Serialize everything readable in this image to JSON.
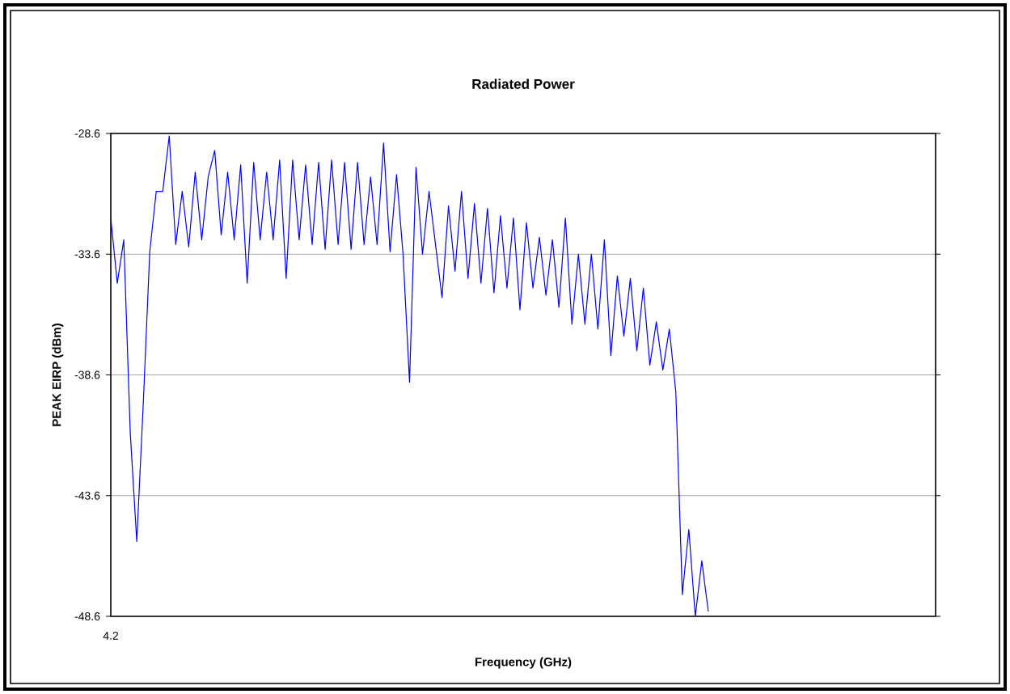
{
  "chart_data": {
    "type": "line",
    "title": "Radiated Power",
    "xlabel": "Frequency (GHz)",
    "ylabel": "PEAK EIRP (dBm)",
    "categories": [
      "4.2",
      null,
      null,
      null,
      null,
      null,
      null,
      null,
      null,
      null,
      null,
      null,
      null,
      null,
      null,
      null,
      null,
      null,
      null,
      null,
      null,
      null,
      null,
      null,
      null,
      null,
      null,
      null,
      null,
      null,
      null,
      null,
      null,
      null,
      null,
      null,
      null,
      null,
      null,
      null,
      null,
      null,
      null,
      null,
      null,
      null,
      null,
      null,
      null,
      null,
      null,
      null,
      null,
      null,
      null,
      null,
      null,
      null,
      null,
      null,
      null,
      null,
      null,
      null,
      null,
      null,
      null,
      null,
      null,
      null,
      null,
      null,
      null,
      null,
      null,
      null,
      null,
      null,
      null,
      null,
      null,
      null,
      null,
      null,
      null,
      null,
      null,
      null,
      null,
      null,
      null,
      null,
      null,
      null,
      null,
      null,
      null,
      null,
      null,
      null,
      null,
      null,
      null,
      null,
      null,
      null,
      null,
      null,
      null,
      null,
      null,
      null,
      null,
      null,
      null,
      null,
      null,
      null,
      null,
      null,
      null,
      null,
      null,
      null,
      null,
      null,
      null,
      null
    ],
    "series": [
      {
        "color": "#0000ff",
        "values": [
          -32.1,
          -34.8,
          -33.0,
          -41.0,
          -45.5,
          -39.8,
          -33.5,
          -31.0,
          -31.0,
          -28.7,
          -33.2,
          -31.0,
          -33.3,
          -30.2,
          -33.0,
          -30.4,
          -29.3,
          -32.8,
          -30.2,
          -33.0,
          -29.9,
          -34.8,
          -29.8,
          -33.0,
          -30.2,
          -33.0,
          -29.7,
          -34.6,
          -29.7,
          -33.0,
          -29.9,
          -33.2,
          -29.8,
          -33.4,
          -29.7,
          -33.2,
          -29.8,
          -33.4,
          -29.8,
          -33.2,
          -30.4,
          -33.2,
          -29.0,
          -33.5,
          -30.3,
          -33.6,
          -38.9,
          -30.0,
          -33.6,
          -31.0,
          -33.2,
          -35.4,
          -31.6,
          -34.3,
          -31.0,
          -34.6,
          -31.5,
          -34.8,
          -31.7,
          -35.2,
          -32.0,
          -35.0,
          -32.1,
          -35.9,
          -32.3,
          -35.0,
          -32.9,
          -35.3,
          -33.0,
          -35.8,
          -32.1,
          -36.5,
          -33.6,
          -36.5,
          -33.6,
          -36.7,
          -33.0,
          -37.8,
          -34.5,
          -37.0,
          -34.6,
          -37.6,
          -35.0,
          -38.2,
          -36.4,
          -38.4,
          -36.7,
          -39.3,
          -47.7,
          -45.0,
          -48.6,
          -46.3,
          -48.4,
          null,
          null,
          null,
          null,
          null,
          null,
          null,
          null,
          null,
          null,
          null,
          null,
          null,
          null,
          null,
          null,
          null,
          null,
          null,
          null,
          null,
          null,
          null,
          null,
          null,
          null,
          null,
          null,
          null,
          null,
          null,
          null,
          null,
          null,
          null
        ]
      }
    ],
    "ylim": [
      -48.6,
      -28.6
    ],
    "yticks": [
      -48.6,
      -43.6,
      -38.6,
      -33.6,
      -28.6
    ],
    "grid": "y",
    "legend": false,
    "marker": "none",
    "line_style": "solid"
  }
}
